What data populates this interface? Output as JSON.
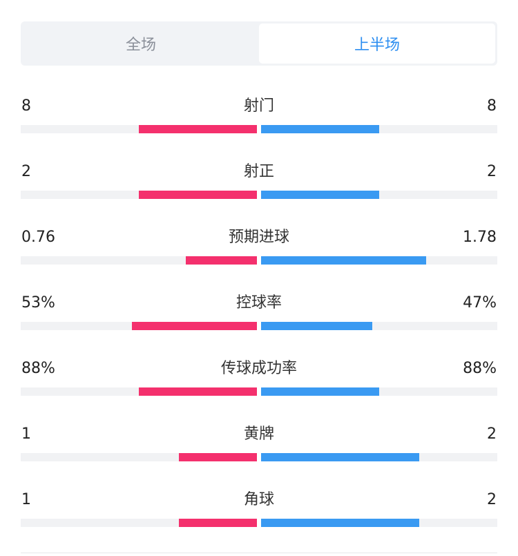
{
  "tabs": [
    {
      "label": "全场",
      "active": false
    },
    {
      "label": "上半场",
      "active": true
    }
  ],
  "colors": {
    "home": "#f4306d",
    "away": "#3a9af2",
    "track": "#f1f2f4",
    "active_tab": "#2d8ef0"
  },
  "stats": [
    {
      "label": "射门",
      "home": "8",
      "away": "8",
      "home_share": 0.5,
      "away_share": 0.5
    },
    {
      "label": "射正",
      "home": "2",
      "away": "2",
      "home_share": 0.5,
      "away_share": 0.5
    },
    {
      "label": "预期进球",
      "home": "0.76",
      "away": "1.78",
      "home_share": 0.3,
      "away_share": 0.7
    },
    {
      "label": "控球率",
      "home": "53%",
      "away": "47%",
      "home_share": 0.53,
      "away_share": 0.47
    },
    {
      "label": "传球成功率",
      "home": "88%",
      "away": "88%",
      "home_share": 0.5,
      "away_share": 0.5
    },
    {
      "label": "黄牌",
      "home": "1",
      "away": "2",
      "home_share": 0.33,
      "away_share": 0.67
    },
    {
      "label": "角球",
      "home": "1",
      "away": "2",
      "home_share": 0.33,
      "away_share": 0.67
    }
  ]
}
